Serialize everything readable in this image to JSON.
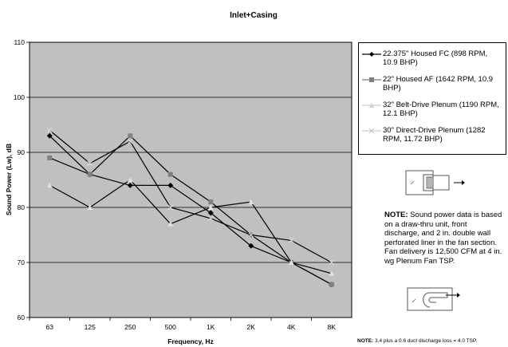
{
  "chart_data": {
    "type": "line",
    "title": "Inlet+Casing",
    "xlabel": "Frequency, Hz",
    "ylabel": "Sound Power (Lw), dB",
    "categories": [
      "63",
      "125",
      "250",
      "500",
      "1K",
      "2K",
      "4K",
      "8K"
    ],
    "ylim": [
      60,
      110
    ],
    "yticks": [
      60,
      70,
      80,
      90,
      100,
      110
    ],
    "grid": true,
    "legend_position": "right",
    "plot_background": "#c0c0c0",
    "series": [
      {
        "name": "22.375\" Housed FC (898 RPM, 10.9 BHP)",
        "color": "#000000",
        "marker": "diamond",
        "values": [
          93,
          86,
          84,
          84,
          79,
          73,
          70,
          66
        ]
      },
      {
        "name": "22\" Housed AF (1642 RPM, 10.9 BHP)",
        "color": "#000000",
        "marker": "square",
        "values": [
          89,
          86,
          93,
          86,
          81,
          75,
          70,
          66
        ]
      },
      {
        "name": "32\" Belt-Drive Plenum (1190 RPM, 12.1 BHP)",
        "color": "#000000",
        "marker": "triangle",
        "values": [
          84,
          80,
          85,
          77,
          80,
          81,
          70,
          68
        ]
      },
      {
        "name": "30\" Direct-Drive Plenum (1282 RPM, 11.72 BHP)",
        "color": "#000000",
        "marker": "x",
        "values": [
          94,
          88,
          92,
          80,
          78,
          75,
          74,
          70
        ]
      }
    ]
  },
  "note": {
    "bold": "NOTE:",
    "text": " Sound power data is based on a draw-thru unit, front discharge, and 2 in. double wall perforated liner in the fan section. Fan delivery is 12,500 CFM at 4 in. wg Plenum Fan TSP."
  },
  "footnote": {
    "bold": "NOTE:",
    "text": " 3.4 plus a 0.6 duct discharge loss = 4.0 TSP."
  }
}
